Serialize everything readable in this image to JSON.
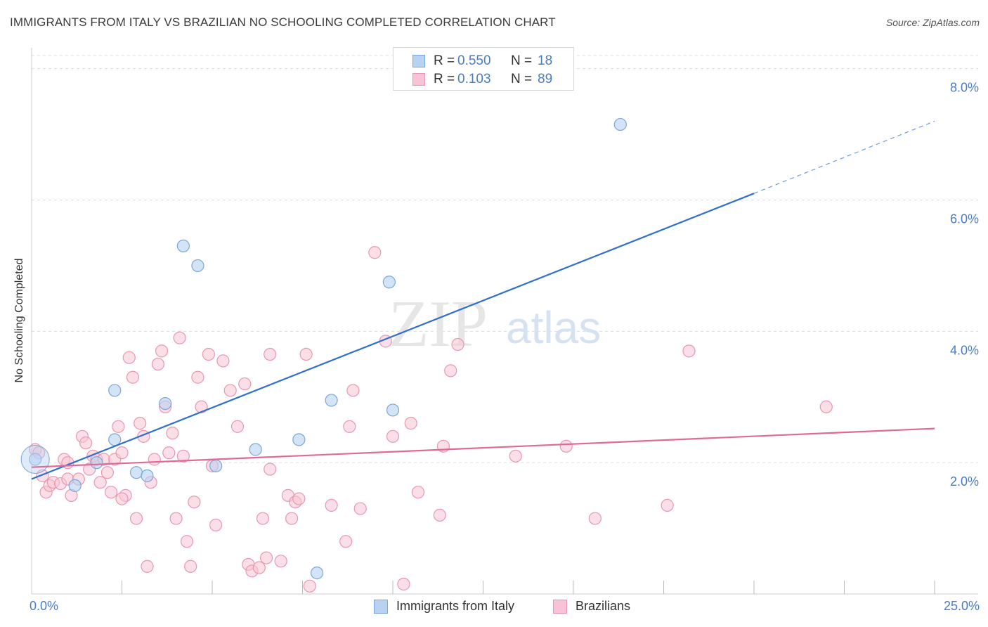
{
  "title": "IMMIGRANTS FROM ITALY VS BRAZILIAN NO SCHOOLING COMPLETED CORRELATION CHART",
  "source": "Source: ZipAtlas.com",
  "watermark": {
    "zip": "ZIP",
    "atlas": "atlas"
  },
  "legend_top": [
    {
      "r_label": "R =",
      "r_value": "0.550",
      "n_label": "N =",
      "n_value": "18"
    },
    {
      "r_label": "R =",
      "r_value": "0.103",
      "n_label": "N =",
      "n_value": "89"
    }
  ],
  "legend_bottom": [
    "Immigrants from Italy",
    "Brazilians"
  ],
  "colors": {
    "italy_fill": "#b8d2f2",
    "italy_stroke": "#7aa6db",
    "italy_line": "#2f6fcf",
    "brazil_fill": "#f8c4d4",
    "brazil_stroke": "#e996b2",
    "brazil_line": "#e06a96",
    "axis_text": "#4a7cc4",
    "grid": "#dddddd"
  },
  "chart_data": {
    "type": "scatter",
    "title": "IMMIGRANTS FROM ITALY VS BRAZILIAN NO SCHOOLING COMPLETED CORRELATION CHART",
    "xlabel": "",
    "ylabel": "No Schooling Completed",
    "x_tick_labels": [
      "0.0%",
      "25.0%"
    ],
    "y_ticks": [
      2.0,
      4.0,
      6.0,
      8.0
    ],
    "y_tick_labels": [
      "2.0%",
      "4.0%",
      "6.0%",
      "8.0%"
    ],
    "xlim": [
      0,
      25
    ],
    "ylim": [
      0,
      8.2
    ],
    "grid": true,
    "series": [
      {
        "name": "Immigrants from Italy",
        "r": 0.55,
        "n": 18,
        "points": [
          [
            0.1,
            2.05
          ],
          [
            1.2,
            1.65
          ],
          [
            1.8,
            2.0
          ],
          [
            2.3,
            2.35
          ],
          [
            2.3,
            3.1
          ],
          [
            2.9,
            1.85
          ],
          [
            3.2,
            1.8
          ],
          [
            3.7,
            2.9
          ],
          [
            4.2,
            5.3
          ],
          [
            4.6,
            5.0
          ],
          [
            5.1,
            1.95
          ],
          [
            6.2,
            2.2
          ],
          [
            7.4,
            2.35
          ],
          [
            7.9,
            0.32
          ],
          [
            8.3,
            2.95
          ],
          [
            9.9,
            4.75
          ],
          [
            10.0,
            2.8
          ],
          [
            16.3,
            7.15
          ]
        ],
        "trend": {
          "x_start": 0,
          "y_start": 1.75,
          "x_end_solid": 20,
          "y_end_solid": 6.1,
          "x_end_dashed": 25,
          "y_end_dashed": 7.2
        }
      },
      {
        "name": "Brazilians",
        "r": 0.103,
        "n": 89,
        "points": [
          [
            0.1,
            2.2
          ],
          [
            0.2,
            2.15
          ],
          [
            0.3,
            1.8
          ],
          [
            0.4,
            1.55
          ],
          [
            0.5,
            1.65
          ],
          [
            0.6,
            1.7
          ],
          [
            0.8,
            1.68
          ],
          [
            0.9,
            2.05
          ],
          [
            1.0,
            1.75
          ],
          [
            1.1,
            1.5
          ],
          [
            1.3,
            1.75
          ],
          [
            1.4,
            2.4
          ],
          [
            1.5,
            2.3
          ],
          [
            1.6,
            1.9
          ],
          [
            1.7,
            2.1
          ],
          [
            1.8,
            2.05
          ],
          [
            1.9,
            1.7
          ],
          [
            2.0,
            2.05
          ],
          [
            2.1,
            1.85
          ],
          [
            2.2,
            1.55
          ],
          [
            2.3,
            2.05
          ],
          [
            2.4,
            2.55
          ],
          [
            2.5,
            2.15
          ],
          [
            2.6,
            1.5
          ],
          [
            2.7,
            3.6
          ],
          [
            2.8,
            3.3
          ],
          [
            2.9,
            1.15
          ],
          [
            3.0,
            2.6
          ],
          [
            3.1,
            2.4
          ],
          [
            3.2,
            0.42
          ],
          [
            3.3,
            1.7
          ],
          [
            3.4,
            2.05
          ],
          [
            3.5,
            3.5
          ],
          [
            3.6,
            3.7
          ],
          [
            3.7,
            2.85
          ],
          [
            3.8,
            2.15
          ],
          [
            3.9,
            2.45
          ],
          [
            4.0,
            1.15
          ],
          [
            4.1,
            3.9
          ],
          [
            4.2,
            2.1
          ],
          [
            4.3,
            0.8
          ],
          [
            4.4,
            0.42
          ],
          [
            4.5,
            1.4
          ],
          [
            4.6,
            3.3
          ],
          [
            4.7,
            2.85
          ],
          [
            4.9,
            3.65
          ],
          [
            5.0,
            1.95
          ],
          [
            5.1,
            1.05
          ],
          [
            5.3,
            3.55
          ],
          [
            5.5,
            3.1
          ],
          [
            5.7,
            2.55
          ],
          [
            5.9,
            3.2
          ],
          [
            6.0,
            0.45
          ],
          [
            6.1,
            0.35
          ],
          [
            6.3,
            0.4
          ],
          [
            6.4,
            1.15
          ],
          [
            6.5,
            0.55
          ],
          [
            6.6,
            1.9
          ],
          [
            6.6,
            3.65
          ],
          [
            6.9,
            0.5
          ],
          [
            7.1,
            1.5
          ],
          [
            7.2,
            1.15
          ],
          [
            7.3,
            1.4
          ],
          [
            7.4,
            1.45
          ],
          [
            7.6,
            3.65
          ],
          [
            7.7,
            0.12
          ],
          [
            8.3,
            1.35
          ],
          [
            8.7,
            0.8
          ],
          [
            8.8,
            2.55
          ],
          [
            8.9,
            3.1
          ],
          [
            9.1,
            1.3
          ],
          [
            9.5,
            5.2
          ],
          [
            9.8,
            3.85
          ],
          [
            10.0,
            2.4
          ],
          [
            10.3,
            0.15
          ],
          [
            10.5,
            2.6
          ],
          [
            10.7,
            1.55
          ],
          [
            11.3,
            1.2
          ],
          [
            11.4,
            2.25
          ],
          [
            11.6,
            3.4
          ],
          [
            11.8,
            3.8
          ],
          [
            13.4,
            2.1
          ],
          [
            14.8,
            2.25
          ],
          [
            15.6,
            1.15
          ],
          [
            17.6,
            1.35
          ],
          [
            18.2,
            3.7
          ],
          [
            22.0,
            2.85
          ],
          [
            1.0,
            2.0
          ],
          [
            2.5,
            1.45
          ]
        ],
        "trend": {
          "x_start": 0,
          "y_start": 1.93,
          "x_end": 25,
          "y_end": 2.52
        }
      }
    ]
  }
}
